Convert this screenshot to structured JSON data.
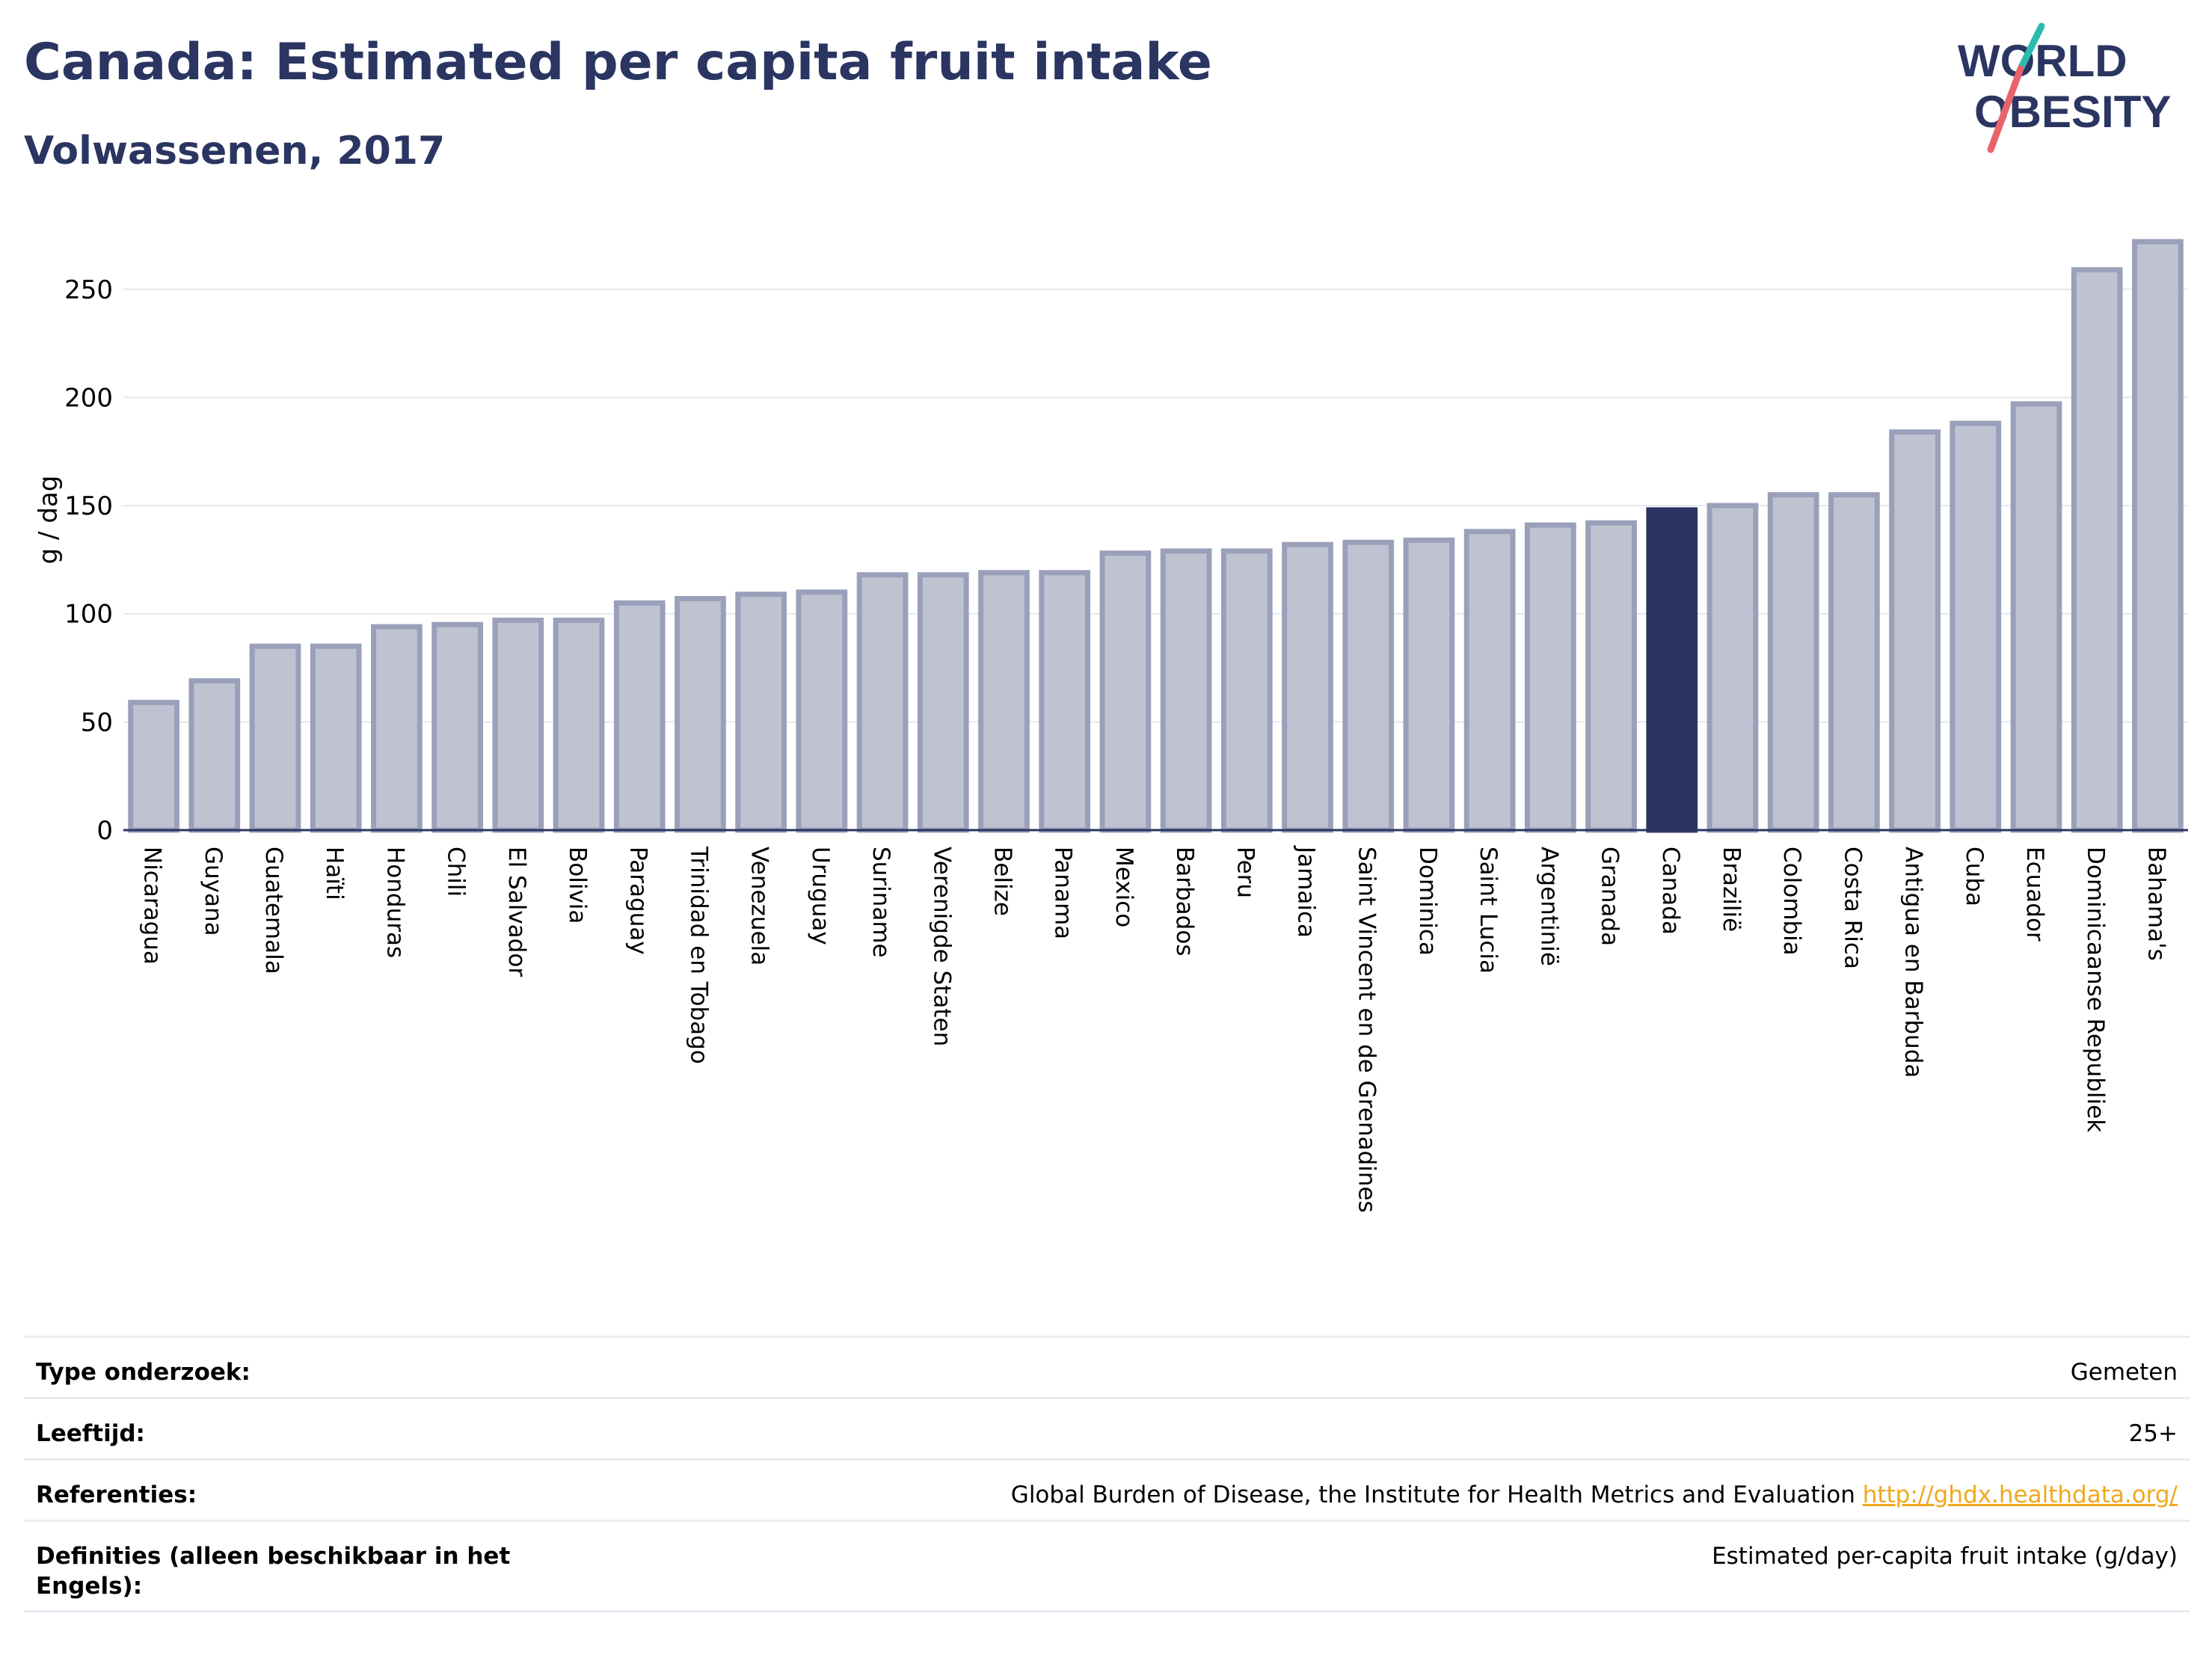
{
  "title": "Canada: Estimated per capita fruit intake",
  "subtitle": "Volwassenen, 2017",
  "logo": {
    "line1": "WORLD",
    "line2": "OBESITY",
    "accent_teal": "#2bbbad",
    "accent_red": "#e8636b"
  },
  "colors": {
    "bar": "#bfc3d1",
    "bar_border": "#9aa0ba",
    "highlight": "#2b3561",
    "text": "#2b3561"
  },
  "chart_data": {
    "type": "bar",
    "title": "Canada: Estimated per capita fruit intake",
    "subtitle": "Volwassenen, 2017",
    "ylabel": "g / dag",
    "ylim": [
      0,
      280
    ],
    "yticks": [
      0,
      50,
      100,
      150,
      200,
      250
    ],
    "grid": true,
    "highlight": "Canada",
    "categories": [
      "Nicaragua",
      "Guyana",
      "Guatemala",
      "Haïti",
      "Honduras",
      "Chili",
      "El Salvador",
      "Bolivia",
      "Paraguay",
      "Trinidad en Tobago",
      "Venezuela",
      "Uruguay",
      "Suriname",
      "Verenigde Staten",
      "Belize",
      "Panama",
      "Mexico",
      "Barbados",
      "Peru",
      "Jamaica",
      "Saint Vincent en de Grenadines",
      "Dominica",
      "Saint Lucia",
      "Argentinië",
      "Granada",
      "Canada",
      "Brazilië",
      "Colombia",
      "Costa Rica",
      "Antigua en Barbuda",
      "Cuba",
      "Ecuador",
      "Dominicaanse Republiek",
      "Bahama's"
    ],
    "values": [
      59,
      69,
      85,
      85,
      94,
      95,
      97,
      97,
      105,
      107,
      109,
      110,
      118,
      118,
      119,
      119,
      128,
      129,
      129,
      132,
      133,
      134,
      138,
      141,
      142,
      148,
      150,
      155,
      155,
      184,
      188,
      197,
      259,
      272
    ]
  },
  "info": [
    {
      "label": "Type onderzoek:",
      "value": "Gemeten"
    },
    {
      "label": "Leeftijd:",
      "value": "25+"
    },
    {
      "label": "Referenties:",
      "value": "Global Burden of Disease, the Institute for Health Metrics and Evaluation",
      "link": "http://ghdx.healthdata.org/"
    },
    {
      "label": "Definities (alleen beschikbaar in het Engels):",
      "value": "Estimated per-capita fruit intake (g/day)"
    }
  ]
}
